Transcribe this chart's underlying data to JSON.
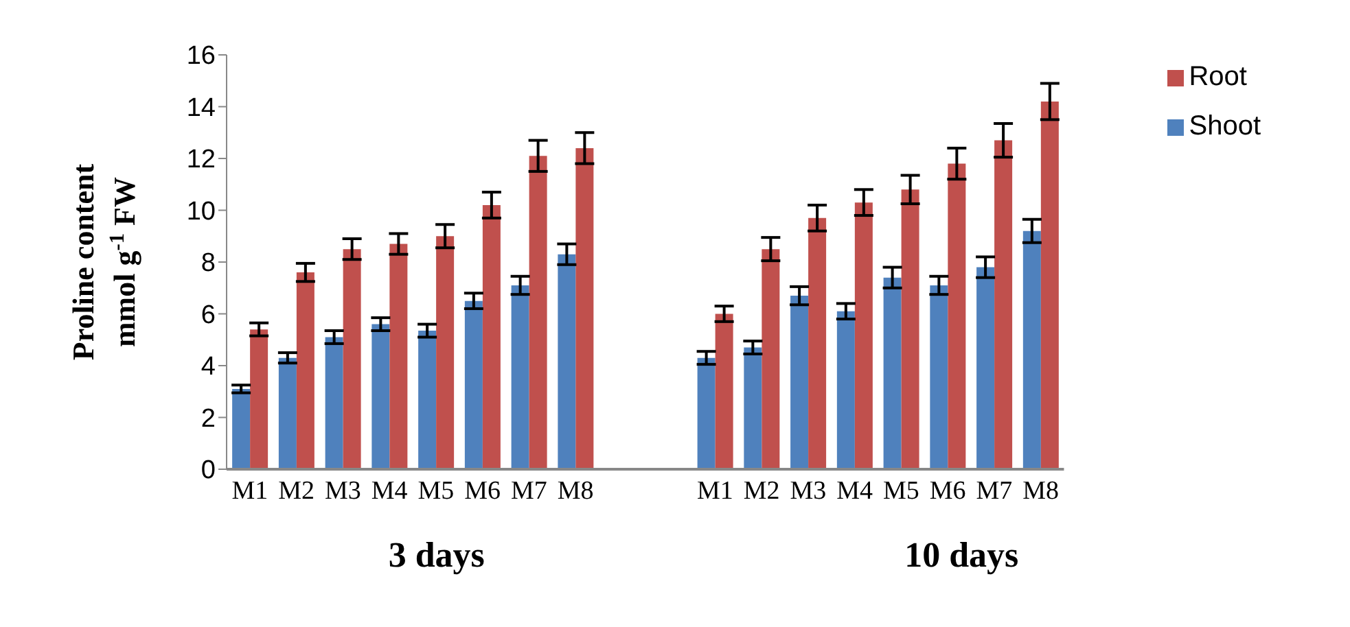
{
  "chart_data": {
    "type": "bar",
    "ylabel": "Proline  content\nmmol g$^{-1}$ FW",
    "categories": [
      "M1",
      "M2",
      "M3",
      "M4",
      "M5",
      "M6",
      "M7",
      "M8",
      null,
      null,
      "M1",
      "M2",
      "M3",
      "M4",
      "M5",
      "M6",
      "M7",
      "M8"
    ],
    "series": [
      {
        "name": "Shoot",
        "color": "#4f81bd",
        "values": [
          3.1,
          4.3,
          5.1,
          5.6,
          5.35,
          6.5,
          7.1,
          8.3,
          null,
          null,
          4.3,
          4.7,
          6.7,
          6.1,
          7.4,
          7.1,
          7.8,
          9.2
        ],
        "errors": [
          0.15,
          0.2,
          0.25,
          0.25,
          0.25,
          0.3,
          0.35,
          0.4,
          null,
          null,
          0.25,
          0.25,
          0.35,
          0.3,
          0.4,
          0.35,
          0.4,
          0.45
        ]
      },
      {
        "name": "Root",
        "color": "#c0504d",
        "values": [
          5.4,
          7.6,
          8.5,
          8.7,
          9.0,
          10.2,
          12.1,
          12.4,
          null,
          null,
          6.0,
          8.5,
          9.7,
          10.3,
          10.8,
          11.8,
          12.7,
          14.2
        ],
        "errors": [
          0.25,
          0.35,
          0.4,
          0.4,
          0.45,
          0.5,
          0.6,
          0.6,
          null,
          null,
          0.3,
          0.45,
          0.5,
          0.5,
          0.55,
          0.6,
          0.65,
          0.7
        ]
      }
    ],
    "ylim": [
      0,
      16
    ],
    "yticks": [
      0,
      2,
      4,
      6,
      8,
      10,
      12,
      14,
      16
    ],
    "grid": false,
    "legend": "top right",
    "annotations": [
      "3 days",
      "10 days"
    ]
  }
}
